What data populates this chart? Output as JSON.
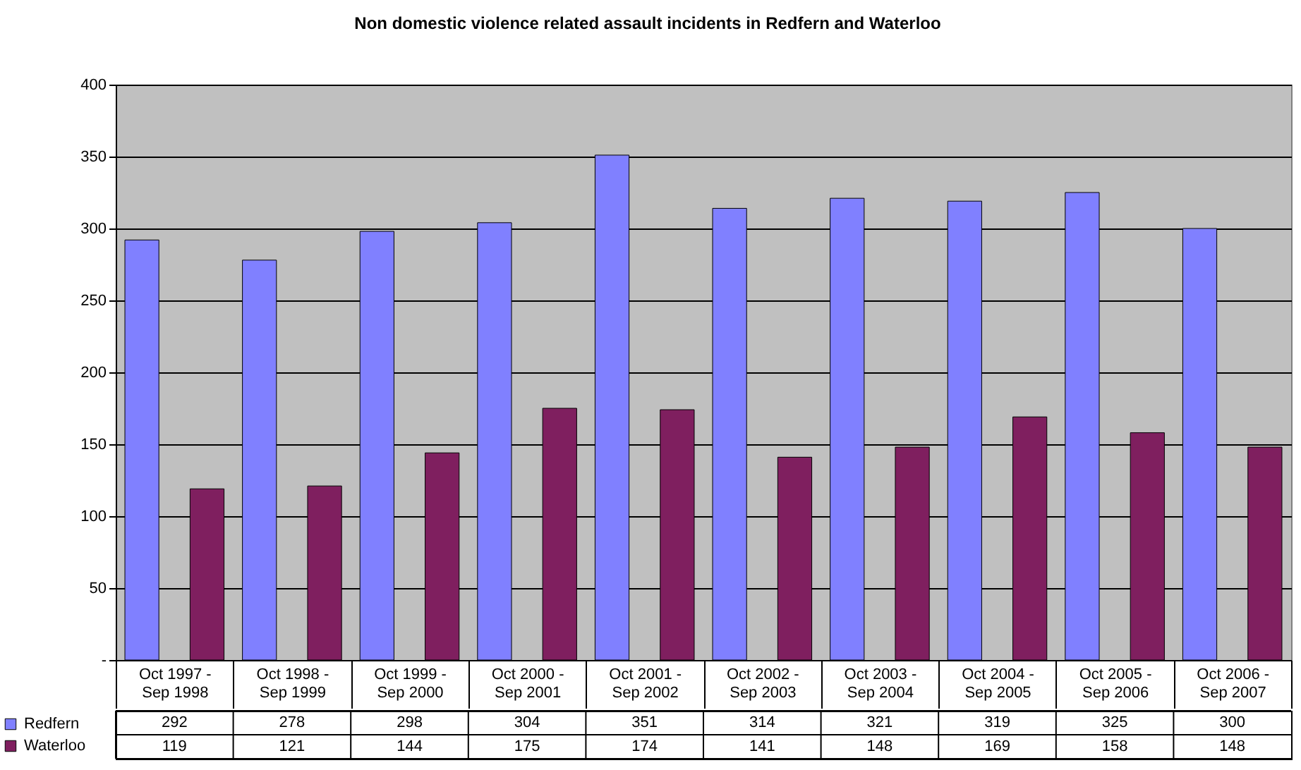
{
  "chart_data": {
    "type": "bar",
    "title": "Non domestic violence related assault incidents in Redfern and Waterloo",
    "categories": [
      "Oct 1997 - Sep 1998",
      "Oct 1998 - Sep 1999",
      "Oct 1999 - Sep 2000",
      "Oct 2000 - Sep 2001",
      "Oct 2001 - Sep 2002",
      "Oct 2002 - Sep 2003",
      "Oct 2003 - Sep 2004",
      "Oct 2004 - Sep 2005",
      "Oct 2005 - Sep 2006",
      "Oct 2006 - Sep 2007"
    ],
    "series": [
      {
        "name": "Redfern",
        "color": "#8080ff",
        "values": [
          292,
          278,
          298,
          304,
          351,
          314,
          321,
          319,
          325,
          300
        ]
      },
      {
        "name": "Waterloo",
        "color": "#7f1f5f",
        "values": [
          119,
          121,
          144,
          175,
          174,
          141,
          148,
          169,
          158,
          148
        ]
      }
    ],
    "ylim": [
      0,
      400
    ],
    "yticks": [
      {
        "value": 0,
        "label": "-"
      },
      50,
      100,
      150,
      200,
      250,
      300,
      350,
      400
    ],
    "grid": "y",
    "legend": "bottom left",
    "data_labels": true
  }
}
